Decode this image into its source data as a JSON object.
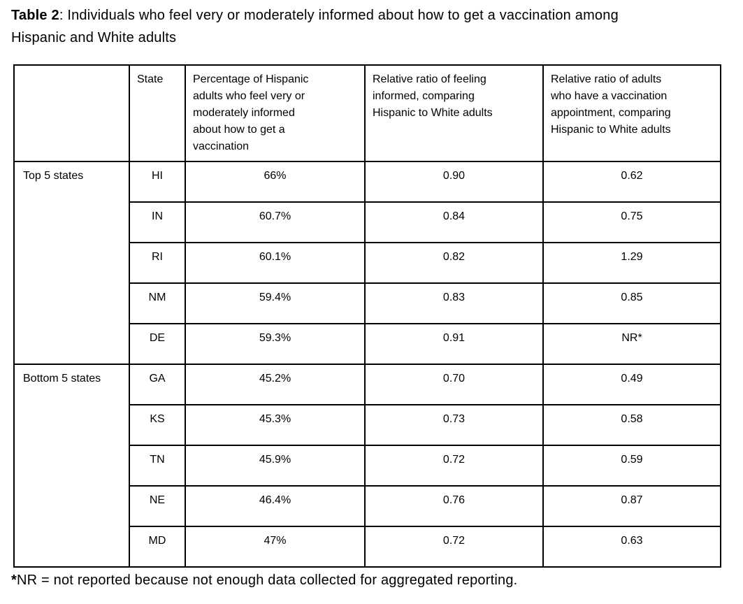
{
  "title": {
    "label": "Table 2",
    "rest": ": Individuals who feel very or moderately informed about how to get a vaccination among Hispanic and White adults"
  },
  "table": {
    "headers": [
      "",
      "State",
      "Percentage of Hispanic adults who feel very or moderately informed about how to get a vaccination",
      "Relative ratio of feeling informed, comparing Hispanic to White adults",
      "Relative ratio of adults who have a vaccination appointment, comparing Hispanic to White adults"
    ],
    "groups": [
      {
        "label": "Top 5 states",
        "rows": [
          [
            "HI",
            "66%",
            "0.90",
            "0.62"
          ],
          [
            "IN",
            "60.7%",
            "0.84",
            "0.75"
          ],
          [
            "RI",
            "60.1%",
            "0.82",
            "1.29"
          ],
          [
            "NM",
            "59.4%",
            "0.83",
            "0.85"
          ],
          [
            "DE",
            "59.3%",
            "0.91",
            "NR*"
          ]
        ]
      },
      {
        "label": "Bottom 5 states",
        "rows": [
          [
            "GA",
            "45.2%",
            "0.70",
            "0.49"
          ],
          [
            "KS",
            "45.3%",
            "0.73",
            "0.58"
          ],
          [
            "TN",
            "45.9%",
            "0.72",
            "0.59"
          ],
          [
            "NE",
            "46.4%",
            "0.76",
            "0.87"
          ],
          [
            "MD",
            "47%",
            "0.72",
            "0.63"
          ]
        ]
      }
    ]
  },
  "footnote": {
    "marker": "*",
    "text": "NR = not reported because not enough data collected for aggregated reporting."
  },
  "colors": {
    "text": "#000000",
    "border": "#000000",
    "background": "#ffffff"
  }
}
